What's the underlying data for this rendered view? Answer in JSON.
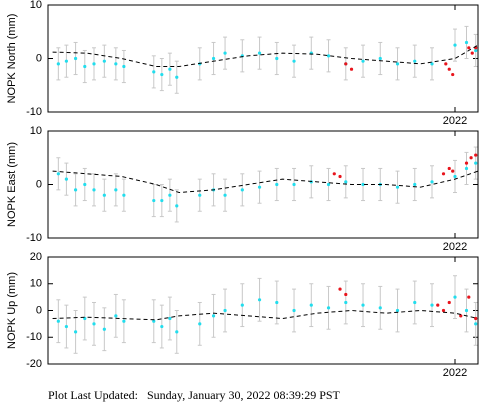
{
  "chart_data": [
    {
      "type": "scatter",
      "ylabel": "NOPK North (mm)",
      "xlim": [
        2018.46,
        2022.2
      ],
      "xticks": [
        2022
      ],
      "ylim": [
        -10,
        10
      ],
      "yticks": [
        -10,
        0,
        10
      ],
      "series": [
        {
          "color": "#22dded",
          "error_color": "#c8c8c8",
          "error": 3,
          "x": [
            2018.55,
            2018.62,
            2018.7,
            2018.78,
            2018.86,
            2018.95,
            2019.05,
            2019.12,
            2019.38,
            2019.45,
            2019.52,
            2019.58,
            2019.78,
            2019.9,
            2020.0,
            2020.15,
            2020.3,
            2020.45,
            2020.6,
            2020.75,
            2020.9,
            2021.05,
            2021.2,
            2021.35,
            2021.5,
            2021.65,
            2021.8,
            2022.0,
            2022.1,
            2022.18
          ],
          "values": [
            -1,
            -0.5,
            0,
            -1.5,
            -1,
            -0.5,
            -1,
            -1.5,
            -2.5,
            -3,
            -2,
            -3.5,
            -1,
            0,
            1,
            0.5,
            1,
            0,
            -0.5,
            1,
            0.5,
            -1,
            -0.5,
            0,
            -1,
            -0.5,
            -1,
            2.5,
            3,
            1.5
          ]
        },
        {
          "color": "#e8141c",
          "x": [
            2021.05,
            2021.1,
            2021.92,
            2021.95,
            2021.98,
            2022.12,
            2022.15,
            2022.18
          ],
          "values": [
            -1,
            -2,
            -1,
            -2,
            -3,
            2,
            1,
            2
          ]
        },
        {
          "color": "#000000",
          "line": "dashed",
          "x": [
            2018.5,
            2018.8,
            2019.1,
            2019.4,
            2019.6,
            2019.9,
            2020.2,
            2020.5,
            2020.8,
            2021.1,
            2021.4,
            2021.7,
            2022.0,
            2022.2
          ],
          "values": [
            1.2,
            1,
            0,
            -1.5,
            -1.5,
            -0.5,
            0.5,
            1,
            0.8,
            0,
            -0.5,
            -1,
            0,
            2.5
          ]
        }
      ]
    },
    {
      "type": "scatter",
      "ylabel": "NOPK East (mm)",
      "xlim": [
        2018.46,
        2022.2
      ],
      "xticks": [
        2022
      ],
      "ylim": [
        -10,
        10
      ],
      "yticks": [
        -10,
        0,
        10
      ],
      "series": [
        {
          "color": "#22dded",
          "error_color": "#c8c8c8",
          "error": 3,
          "x": [
            2018.55,
            2018.62,
            2018.7,
            2018.78,
            2018.86,
            2018.95,
            2019.05,
            2019.12,
            2019.38,
            2019.45,
            2019.52,
            2019.58,
            2019.78,
            2019.9,
            2020.0,
            2020.15,
            2020.3,
            2020.45,
            2020.6,
            2020.75,
            2020.9,
            2021.05,
            2021.2,
            2021.35,
            2021.5,
            2021.65,
            2021.8,
            2022.0,
            2022.1,
            2022.18
          ],
          "values": [
            2,
            1,
            -1,
            0,
            -1,
            -2,
            -1,
            -2,
            -3,
            -3,
            -2,
            -4,
            -2,
            -1,
            -2,
            -1,
            -0.5,
            0,
            0,
            0.5,
            0,
            0.5,
            0,
            0,
            -0.5,
            0,
            0.5,
            1.5,
            3,
            4
          ]
        },
        {
          "color": "#e8141c",
          "x": [
            2020.95,
            2021.0,
            2021.9,
            2021.95,
            2021.98,
            2022.1,
            2022.14,
            2022.18
          ],
          "values": [
            2,
            1.5,
            2,
            3,
            2.5,
            4,
            5,
            5.5
          ]
        },
        {
          "color": "#000000",
          "line": "dashed",
          "x": [
            2018.5,
            2018.8,
            2019.1,
            2019.4,
            2019.6,
            2019.9,
            2020.2,
            2020.5,
            2020.8,
            2021.1,
            2021.4,
            2021.7,
            2022.0,
            2022.2
          ],
          "values": [
            2.5,
            2,
            1.5,
            0,
            -1.5,
            -1,
            0,
            1,
            0.5,
            0,
            0,
            -0.5,
            1,
            2.5
          ]
        }
      ]
    },
    {
      "type": "scatter",
      "ylabel": "NOPK Up (mm)",
      "xlim": [
        2018.46,
        2022.2
      ],
      "xticks": [
        2022
      ],
      "ylim": [
        -20,
        20
      ],
      "yticks": [
        -20,
        -10,
        0,
        10,
        20
      ],
      "series": [
        {
          "color": "#22dded",
          "error_color": "#c8c8c8",
          "error": 8,
          "x": [
            2018.55,
            2018.62,
            2018.7,
            2018.78,
            2018.86,
            2018.95,
            2019.05,
            2019.12,
            2019.38,
            2019.45,
            2019.52,
            2019.58,
            2019.78,
            2019.9,
            2020.0,
            2020.15,
            2020.3,
            2020.45,
            2020.6,
            2020.75,
            2020.9,
            2021.05,
            2021.2,
            2021.35,
            2021.5,
            2021.65,
            2021.8,
            2022.0,
            2022.1,
            2022.18
          ],
          "values": [
            -4,
            -6,
            -8,
            -3,
            -5,
            -7,
            -2,
            -4,
            -4,
            -6,
            -3,
            -8,
            -5,
            -2,
            0,
            2,
            4,
            3,
            0,
            2,
            1,
            3,
            2,
            1,
            0,
            3,
            2,
            5,
            0,
            -5
          ]
        },
        {
          "color": "#e8141c",
          "x": [
            2021.0,
            2021.05,
            2021.85,
            2021.9,
            2021.95,
            2022.05,
            2022.12,
            2022.18
          ],
          "values": [
            8,
            6,
            2,
            0,
            3,
            -2,
            5,
            -3
          ]
        },
        {
          "color": "#000000",
          "line": "dashed",
          "x": [
            2018.5,
            2018.8,
            2019.1,
            2019.4,
            2019.6,
            2019.9,
            2020.2,
            2020.5,
            2020.8,
            2021.1,
            2021.4,
            2021.7,
            2022.0,
            2022.2
          ],
          "values": [
            -3,
            -2.5,
            -3,
            -3.5,
            -2,
            -1,
            -2,
            -3,
            -1,
            0,
            -1,
            0,
            -1,
            -3
          ]
        }
      ]
    }
  ],
  "footer": "Plot Last Updated:   Sunday, January 30, 2022 08:39:29 PST"
}
